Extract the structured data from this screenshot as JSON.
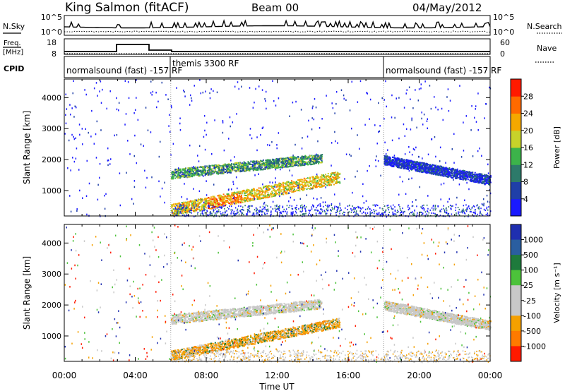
{
  "header": {
    "station": "King Salmon (fitACF)",
    "beam": "Beam 00",
    "date": "04/May/2012"
  },
  "nsky_panel": {
    "left_label": "N.Sky",
    "right_label": "N.Search",
    "left_ticks": [
      "10^5",
      "10^0"
    ],
    "right_ticks": [
      "10^5",
      "10^0"
    ]
  },
  "freq_panel": {
    "left_label_1": "Freq.",
    "left_label_2": "[MHz]",
    "right_label": "Nave",
    "left_ticks": [
      "18",
      "8"
    ],
    "right_ticks": [
      "60",
      "0"
    ]
  },
  "cpid_panel": {
    "label": "CPID",
    "segments": [
      {
        "text": "normalsound (fast) -157 RF",
        "start_hour": 0,
        "end_hour": 6
      },
      {
        "text": "themis 3300 RF",
        "start_hour": 6,
        "end_hour": 18
      },
      {
        "text": "normalsound (fast) -157 RF",
        "start_hour": 18,
        "end_hour": 24
      }
    ]
  },
  "chart_data": [
    {
      "type": "heatmap",
      "panel": "power",
      "ylabel": "Slant Range [km]",
      "xlabel": "",
      "xlim": [
        0,
        24
      ],
      "ylim": [
        180,
        4600
      ],
      "y_ticks": [
        1000,
        2000,
        3000,
        4000
      ],
      "colorbar": {
        "label": "Power [dB]",
        "ticks": [
          "4",
          "8",
          "12",
          "16",
          "20",
          "24",
          "28"
        ],
        "colors": [
          "#1a1aff",
          "#1f3fa8",
          "#2d7a6a",
          "#3cb34a",
          "#c8d22a",
          "#f5a800",
          "#ff6a00",
          "#ff1a00"
        ]
      },
      "echo_bands": [
        {
          "name": "",
          "start_hour": 6.0,
          "end_hour": 14.5,
          "range_start_km": 1550,
          "range_end_km": 2050,
          "level": 4
        },
        {
          "name": "",
          "start_hour": 6.0,
          "end_hour": 15.5,
          "range_start_km": 380,
          "range_end_km": 1450,
          "level": 6
        },
        {
          "name": "",
          "start_hour": 18.0,
          "end_hour": 24.0,
          "range_start_km": 2000,
          "range_end_km": 1350,
          "level": 2
        }
      ]
    },
    {
      "type": "heatmap",
      "panel": "velocity",
      "ylabel": "Slant Range [km]",
      "xlabel": "Time UT",
      "xlim": [
        0,
        24
      ],
      "ylim": [
        180,
        4600
      ],
      "y_ticks": [
        1000,
        2000,
        3000,
        4000
      ],
      "x_tick_labels": [
        "00:00",
        "04:00",
        "08:00",
        "12:00",
        "16:00",
        "20:00",
        "00:00"
      ],
      "colorbar": {
        "label": "Velocity [m s⁻¹]",
        "ticks": [
          "1000",
          "500",
          "100",
          "25",
          "-25",
          "-100",
          "-500",
          "-1000"
        ],
        "colors": [
          "#1f2fb0",
          "#2a5ea0",
          "#1e7a3c",
          "#4cc23a",
          "#c8c8c8",
          "#c8c8c8",
          "#f5a000",
          "#ff7a00",
          "#ff1a00"
        ]
      },
      "echo_bands": [
        {
          "name": "",
          "start_hour": 6.0,
          "end_hour": 14.5,
          "range_start_km": 1550,
          "range_end_km": 2050,
          "level": "ground"
        },
        {
          "name": "",
          "start_hour": 6.0,
          "end_hour": 15.5,
          "range_start_km": 380,
          "range_end_km": 1450,
          "level": "negative"
        },
        {
          "name": "",
          "start_hour": 18.0,
          "end_hour": 24.0,
          "range_start_km": 2000,
          "range_end_km": 1350,
          "level": "ground"
        }
      ]
    }
  ]
}
